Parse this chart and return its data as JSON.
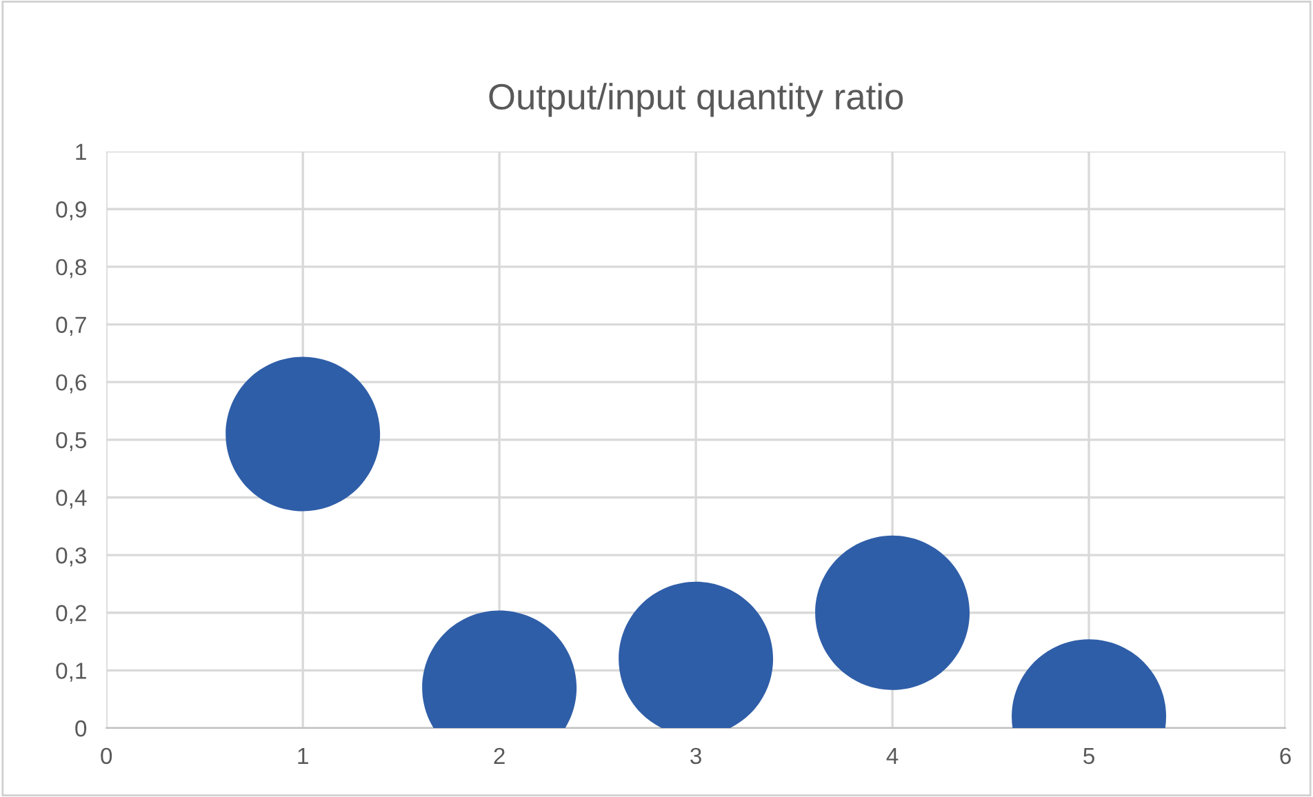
{
  "chart_data": {
    "type": "bubble",
    "title": "Output/input quantity ratio",
    "x": [
      1,
      2,
      3,
      4,
      5
    ],
    "series": [
      {
        "color": "#2f5ea8",
        "values": [
          0.51,
          0.07,
          0.12,
          0.2,
          0.02
        ],
        "sizes": [
          1,
          1,
          1,
          1,
          1
        ]
      }
    ],
    "xlim": [
      0,
      6
    ],
    "xticks": [
      0,
      1,
      2,
      3,
      4,
      5,
      6
    ],
    "ylim": [
      0,
      1
    ],
    "yticks": [
      0,
      {
        "value": 0.1,
        "label": "0,1"
      },
      {
        "value": 0.2,
        "label": "0,2"
      },
      {
        "value": 0.3,
        "label": "0,3"
      },
      {
        "value": 0.4,
        "label": "0,4"
      },
      {
        "value": 0.5,
        "label": "0,5"
      },
      {
        "value": 0.6,
        "label": "0,6"
      },
      {
        "value": 0.7,
        "label": "0,7"
      },
      {
        "value": 0.8,
        "label": "0,8"
      },
      {
        "value": 0.9,
        "label": "0,9"
      },
      1
    ],
    "grid": true,
    "legend": false
  }
}
